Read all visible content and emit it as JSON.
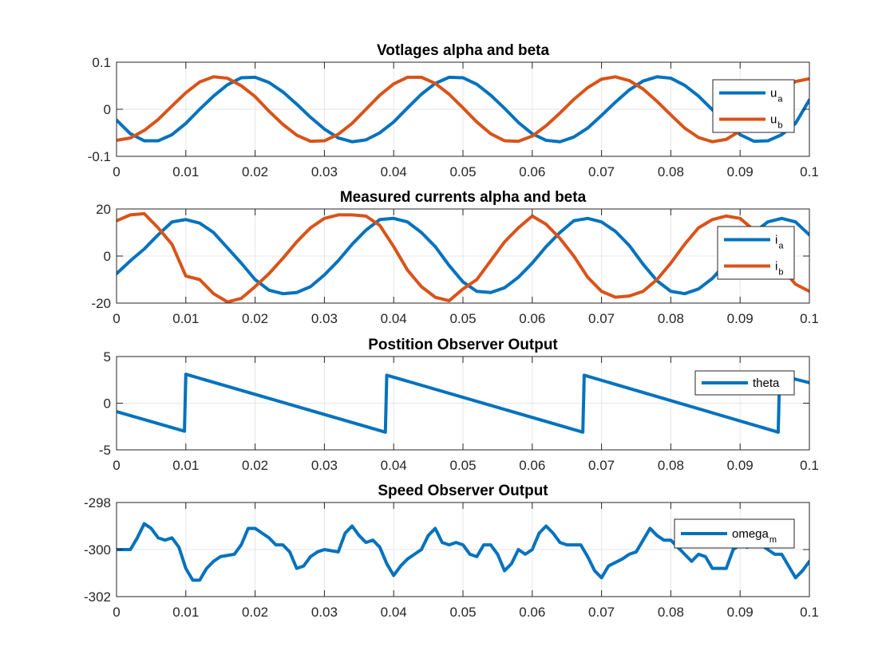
{
  "chart_data": [
    {
      "type": "line",
      "title": "Votlages alpha and beta",
      "xlabel": "",
      "ylabel": "",
      "xlim": [
        0,
        0.1
      ],
      "ylim": [
        -0.1,
        0.1
      ],
      "xticks": [
        "0",
        "0.01",
        "0.02",
        "0.03",
        "0.04",
        "0.05",
        "0.06",
        "0.07",
        "0.08",
        "0.09",
        "0.1"
      ],
      "yticks": [
        "-0.1",
        "0",
        "0.1"
      ],
      "grid": true,
      "legend_position": "right",
      "x": [
        0,
        0.002,
        0.004,
        0.006,
        0.008,
        0.01,
        0.012,
        0.014,
        0.016,
        0.018,
        0.02,
        0.022,
        0.024,
        0.026,
        0.028,
        0.03,
        0.032,
        0.034,
        0.036,
        0.038,
        0.04,
        0.042,
        0.044,
        0.046,
        0.048,
        0.05,
        0.052,
        0.054,
        0.056,
        0.058,
        0.06,
        0.062,
        0.064,
        0.066,
        0.068,
        0.07,
        0.072,
        0.074,
        0.076,
        0.078,
        0.08,
        0.082,
        0.084,
        0.086,
        0.088,
        0.09,
        0.092,
        0.094,
        0.096,
        0.098,
        0.1
      ],
      "series": [
        {
          "name": "u",
          "name_subscript": "a",
          "color": "#0072BD",
          "values": [
            -0.023,
            -0.052,
            -0.067,
            -0.067,
            -0.054,
            -0.03,
            0.0,
            0.028,
            0.052,
            0.067,
            0.068,
            0.057,
            0.037,
            0.011,
            -0.017,
            -0.042,
            -0.061,
            -0.069,
            -0.065,
            -0.05,
            -0.027,
            0.003,
            0.032,
            0.055,
            0.068,
            0.067,
            0.053,
            0.03,
            0.002,
            -0.028,
            -0.052,
            -0.066,
            -0.069,
            -0.059,
            -0.04,
            -0.013,
            0.015,
            0.041,
            0.06,
            0.069,
            0.066,
            0.051,
            0.028,
            -0.001,
            -0.03,
            -0.054,
            -0.068,
            -0.067,
            -0.054,
            -0.03,
            0.02
          ]
        },
        {
          "name": "u",
          "name_subscript": "b",
          "color": "#D95319",
          "values": [
            -0.066,
            -0.061,
            -0.045,
            -0.022,
            0.007,
            0.035,
            0.058,
            0.069,
            0.066,
            0.05,
            0.027,
            -0.004,
            -0.032,
            -0.055,
            -0.068,
            -0.067,
            -0.053,
            -0.03,
            0.0,
            0.03,
            0.054,
            0.068,
            0.068,
            0.055,
            0.032,
            0.003,
            -0.027,
            -0.052,
            -0.067,
            -0.068,
            -0.057,
            -0.035,
            -0.008,
            0.021,
            0.046,
            0.064,
            0.069,
            0.061,
            0.043,
            0.017,
            -0.012,
            -0.04,
            -0.06,
            -0.069,
            -0.064,
            -0.046,
            -0.022,
            0.008,
            0.037,
            0.059,
            0.065
          ]
        }
      ]
    },
    {
      "type": "line",
      "title": "Measured currents alpha and beta",
      "xlabel": "",
      "ylabel": "",
      "xlim": [
        0,
        0.1
      ],
      "ylim": [
        -20,
        20
      ],
      "xticks": [
        "0",
        "0.01",
        "0.02",
        "0.03",
        "0.04",
        "0.05",
        "0.06",
        "0.07",
        "0.08",
        "0.09",
        "0.1"
      ],
      "yticks": [
        "-20",
        "0",
        "20"
      ],
      "grid": true,
      "legend_position": "right",
      "x": [
        0,
        0.002,
        0.004,
        0.006,
        0.008,
        0.01,
        0.012,
        0.014,
        0.016,
        0.018,
        0.02,
        0.022,
        0.024,
        0.026,
        0.028,
        0.03,
        0.032,
        0.034,
        0.036,
        0.038,
        0.04,
        0.042,
        0.044,
        0.046,
        0.048,
        0.05,
        0.052,
        0.054,
        0.056,
        0.058,
        0.06,
        0.062,
        0.064,
        0.066,
        0.068,
        0.07,
        0.072,
        0.074,
        0.076,
        0.078,
        0.08,
        0.082,
        0.084,
        0.086,
        0.088,
        0.09,
        0.092,
        0.094,
        0.096,
        0.098,
        0.1
      ],
      "series": [
        {
          "name": "i",
          "name_subscript": "a",
          "color": "#0072BD",
          "values": [
            -7.5,
            -2.0,
            3.0,
            9.0,
            14.5,
            15.5,
            14.0,
            10.0,
            3.5,
            -3.0,
            -10.0,
            -14.5,
            -16.0,
            -15.5,
            -13.0,
            -8.0,
            -2.0,
            5.0,
            11.0,
            15.5,
            16.0,
            14.5,
            10.0,
            4.0,
            -4.0,
            -11.0,
            -15.0,
            -15.5,
            -13.5,
            -9.0,
            -3.0,
            4.0,
            10.0,
            15.0,
            16.0,
            14.5,
            10.5,
            4.5,
            -3.5,
            -10.5,
            -15.0,
            -16.0,
            -14.0,
            -9.5,
            -3.0,
            3.5,
            10.0,
            14.5,
            16.0,
            14.5,
            9.0
          ]
        },
        {
          "name": "i",
          "name_subscript": "b",
          "color": "#D95319",
          "values": [
            15.0,
            17.5,
            18.0,
            12.0,
            5.0,
            -8.5,
            -10.0,
            -16.0,
            -19.5,
            -18.0,
            -13.0,
            -7.5,
            -1.0,
            6.0,
            12.0,
            16.0,
            17.5,
            17.5,
            17.0,
            13.0,
            4.0,
            -6.0,
            -13.0,
            -17.5,
            -19.0,
            -14.0,
            -10.0,
            -2.0,
            6.0,
            12.0,
            17.0,
            13.5,
            7.5,
            0.0,
            -9.0,
            -15.0,
            -17.5,
            -17.0,
            -15.0,
            -10.0,
            -3.0,
            5.0,
            12.0,
            15.5,
            17.0,
            16.0,
            11.0,
            4.5,
            -5.0,
            -12.0,
            -15.0
          ]
        }
      ]
    },
    {
      "type": "line",
      "title": "Postition Observer Output",
      "xlabel": "",
      "ylabel": "",
      "xlim": [
        0,
        0.1
      ],
      "ylim": [
        -5,
        5
      ],
      "xticks": [
        "0",
        "0.01",
        "0.02",
        "0.03",
        "0.04",
        "0.05",
        "0.06",
        "0.07",
        "0.08",
        "0.09",
        "0.1"
      ],
      "yticks": [
        "-5",
        "0",
        "5"
      ],
      "grid": true,
      "legend_position": "right",
      "x": [
        0,
        0.0098,
        0.01,
        0.0388,
        0.039,
        0.0673,
        0.0675,
        0.0955,
        0.0957,
        0.1
      ],
      "series": [
        {
          "name": "theta",
          "name_subscript": "",
          "color": "#0072BD",
          "values": [
            -0.9,
            -3.0,
            3.1,
            -3.1,
            3.0,
            -3.1,
            3.0,
            -3.1,
            3.0,
            2.2
          ]
        }
      ]
    },
    {
      "type": "line",
      "title": "Speed Observer Output",
      "xlabel": "",
      "ylabel": "",
      "xlim": [
        0,
        0.1
      ],
      "ylim": [
        -302,
        -298
      ],
      "xticks": [
        "0",
        "0.01",
        "0.02",
        "0.03",
        "0.04",
        "0.05",
        "0.06",
        "0.07",
        "0.08",
        "0.09",
        "0.1"
      ],
      "yticks": [
        "-302",
        "-300",
        "-298"
      ],
      "grid": true,
      "legend_position": "right",
      "x": [
        0,
        0.002,
        0.003,
        0.004,
        0.005,
        0.006,
        0.007,
        0.008,
        0.009,
        0.01,
        0.011,
        0.012,
        0.013,
        0.014,
        0.015,
        0.017,
        0.018,
        0.019,
        0.02,
        0.021,
        0.022,
        0.023,
        0.024,
        0.025,
        0.026,
        0.027,
        0.028,
        0.029,
        0.03,
        0.032,
        0.033,
        0.034,
        0.035,
        0.036,
        0.037,
        0.038,
        0.039,
        0.04,
        0.041,
        0.042,
        0.043,
        0.044,
        0.045,
        0.046,
        0.047,
        0.048,
        0.049,
        0.05,
        0.051,
        0.052,
        0.053,
        0.054,
        0.055,
        0.056,
        0.057,
        0.058,
        0.059,
        0.06,
        0.061,
        0.062,
        0.063,
        0.064,
        0.065,
        0.066,
        0.067,
        0.068,
        0.069,
        0.07,
        0.071,
        0.073,
        0.074,
        0.075,
        0.076,
        0.077,
        0.078,
        0.079,
        0.08,
        0.081,
        0.082,
        0.083,
        0.084,
        0.085,
        0.086,
        0.088,
        0.089,
        0.09,
        0.091,
        0.092,
        0.093,
        0.094,
        0.095,
        0.096,
        0.097,
        0.098,
        0.099,
        0.1
      ],
      "series": [
        {
          "name": "omega",
          "name_subscript": "m",
          "color": "#0072BD",
          "values": [
            -300.0,
            -300.0,
            -299.5,
            -298.9,
            -299.1,
            -299.5,
            -299.6,
            -299.5,
            -299.9,
            -300.8,
            -301.3,
            -301.3,
            -300.8,
            -300.5,
            -300.3,
            -300.2,
            -299.8,
            -299.1,
            -299.1,
            -299.3,
            -299.5,
            -299.8,
            -299.8,
            -300.1,
            -300.8,
            -300.7,
            -300.3,
            -300.1,
            -300.0,
            -300.1,
            -299.3,
            -299.0,
            -299.4,
            -299.7,
            -299.6,
            -299.9,
            -300.6,
            -301.1,
            -300.7,
            -300.4,
            -300.2,
            -300.0,
            -299.4,
            -299.1,
            -299.7,
            -299.8,
            -299.7,
            -299.8,
            -300.2,
            -300.3,
            -299.8,
            -299.8,
            -300.2,
            -300.9,
            -300.6,
            -300.0,
            -300.2,
            -300.0,
            -299.3,
            -299.0,
            -299.3,
            -299.7,
            -299.8,
            -299.8,
            -299.8,
            -300.3,
            -300.9,
            -301.2,
            -300.7,
            -300.4,
            -300.2,
            -300.1,
            -299.6,
            -299.1,
            -299.4,
            -299.6,
            -299.6,
            -299.9,
            -300.2,
            -300.5,
            -300.2,
            -300.3,
            -300.8,
            -300.8,
            -300.0,
            -299.8,
            -299.9,
            -299.8,
            -299.8,
            -300.0,
            -300.2,
            -300.2,
            -300.7,
            -301.2,
            -300.9,
            -300.5
          ]
        }
      ]
    }
  ]
}
